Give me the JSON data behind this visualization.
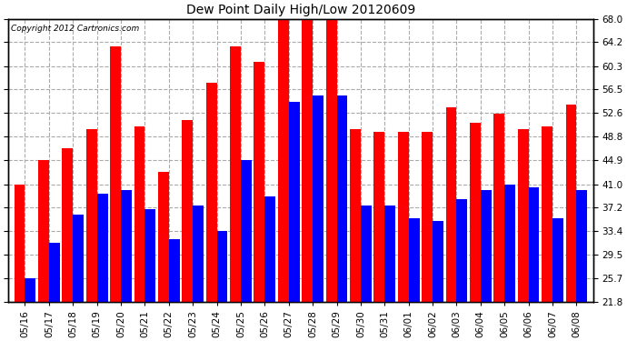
{
  "title": "Dew Point Daily High/Low 20120609",
  "copyright": "Copyright 2012 Cartronics.com",
  "dates": [
    "05/16",
    "05/17",
    "05/18",
    "05/19",
    "05/20",
    "05/21",
    "05/22",
    "05/23",
    "05/24",
    "05/25",
    "05/26",
    "05/27",
    "05/28",
    "05/29",
    "05/30",
    "05/31",
    "06/01",
    "06/02",
    "06/03",
    "06/04",
    "06/05",
    "06/06",
    "06/07",
    "06/08"
  ],
  "highs": [
    41.0,
    44.9,
    46.9,
    50.0,
    63.5,
    50.5,
    43.0,
    51.5,
    57.5,
    63.5,
    61.0,
    68.0,
    68.0,
    68.0,
    50.0,
    49.5,
    49.5,
    49.5,
    53.5,
    51.0,
    52.5,
    50.0,
    50.5,
    54.0
  ],
  "lows": [
    25.7,
    31.5,
    36.0,
    39.5,
    40.0,
    37.0,
    32.0,
    37.5,
    33.4,
    45.0,
    39.0,
    54.5,
    55.5,
    55.5,
    37.5,
    37.5,
    35.5,
    35.0,
    38.5,
    40.0,
    41.0,
    40.5,
    35.5,
    40.0
  ],
  "bar_width": 0.45,
  "high_color": "#ff0000",
  "low_color": "#0000ff",
  "bg_color": "#ffffff",
  "grid_color": "#aaaaaa",
  "yticks": [
    21.8,
    25.7,
    29.5,
    33.4,
    37.2,
    41.0,
    44.9,
    48.8,
    52.6,
    56.5,
    60.3,
    64.2,
    68.0
  ],
  "ymin": 21.8,
  "ymax": 68.0
}
